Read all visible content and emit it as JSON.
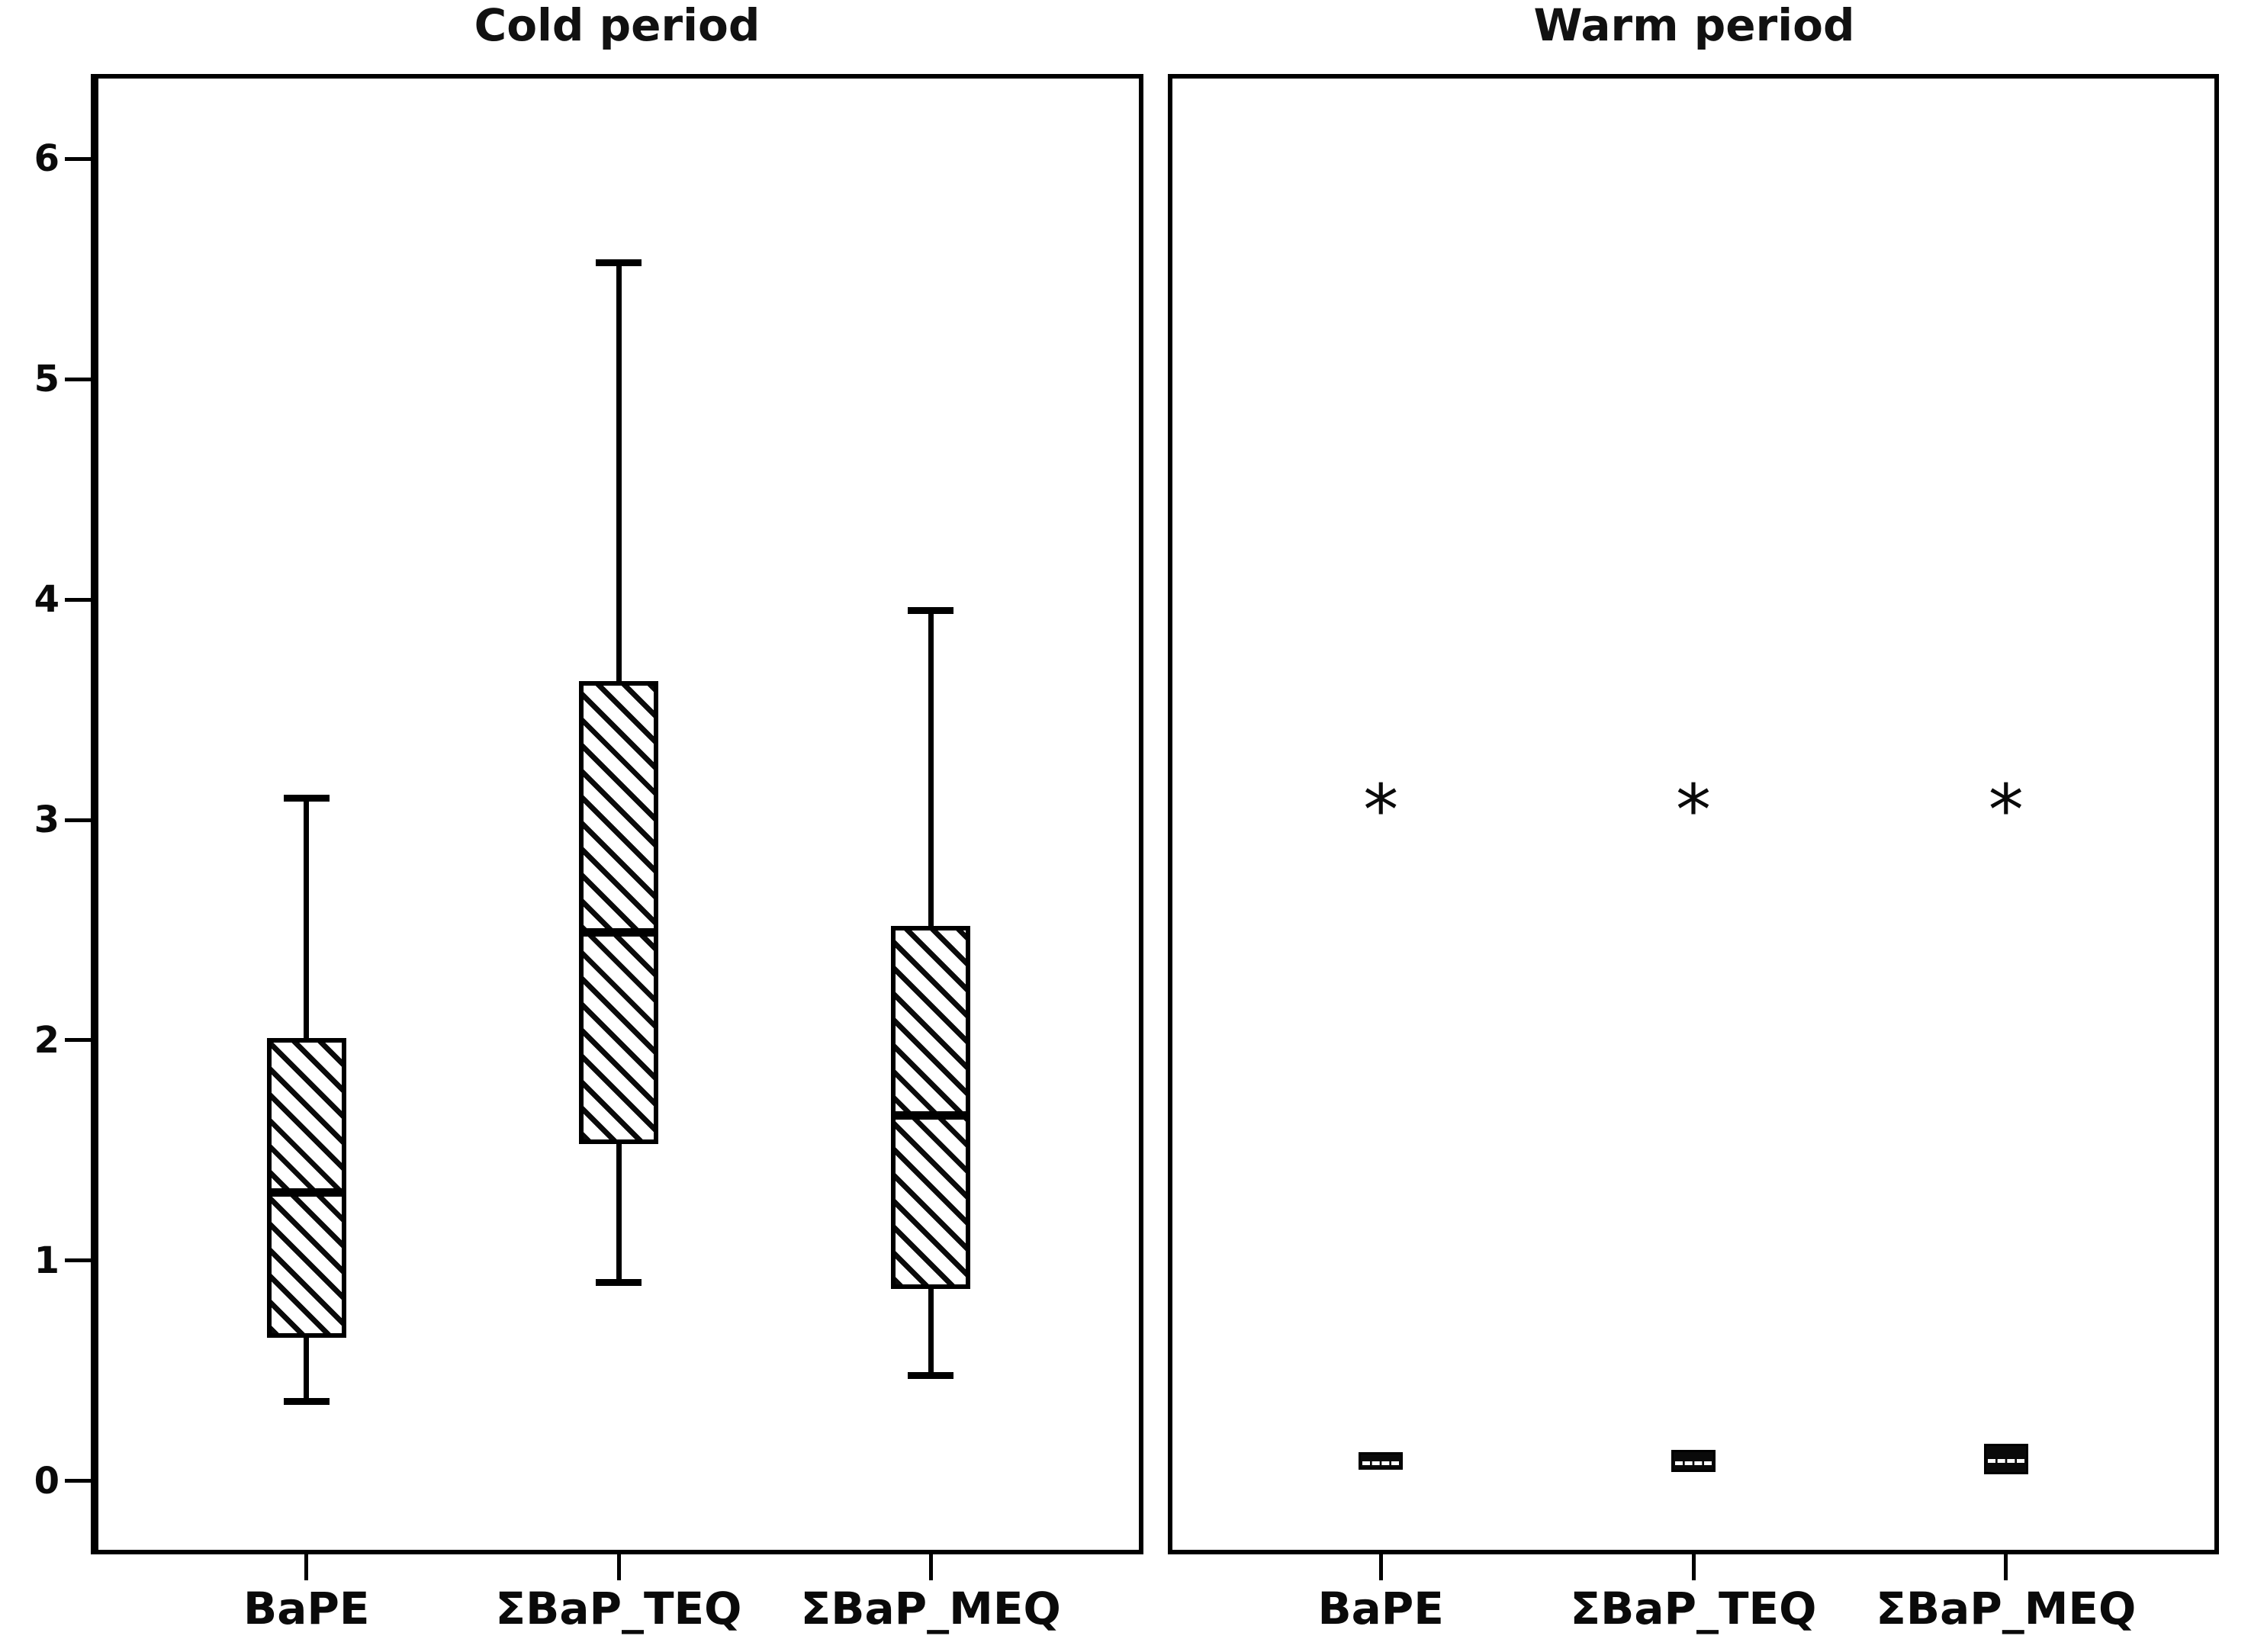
{
  "figure": {
    "titles": {
      "left": "Cold period",
      "right": "Warm period"
    },
    "background_color": "#ffffff",
    "ink_color": "#000000"
  },
  "y_axis": {
    "tick_labels": [
      "0",
      "1",
      "2",
      "3",
      "4",
      "5",
      "6"
    ],
    "range_min": 0,
    "range_max": 6
  },
  "x_axis": {
    "categories": [
      "BaPE",
      "ΣBaP_TEQ",
      "ΣBaP_MEQ"
    ]
  },
  "chart_data": [
    {
      "type": "box",
      "panel_title": "Cold period",
      "categories": [
        "BaPE",
        "ΣBaP_TEQ",
        "ΣBaP_MEQ"
      ],
      "ylim": [
        0,
        6
      ],
      "y_ticks": [
        0,
        1,
        2,
        3,
        4,
        5,
        6
      ],
      "grid": false,
      "legend": "none",
      "box_style": "diagonal-hatch",
      "outlier_marker": "asterisk",
      "series": [
        {
          "name": "BaPE",
          "whisker_low": 0.36,
          "q1": 0.65,
          "median": 1.31,
          "q3": 2.01,
          "whisker_high": 3.1,
          "outliers": []
        },
        {
          "name": "ΣBaP_TEQ",
          "whisker_low": 0.9,
          "q1": 1.53,
          "median": 2.49,
          "q3": 3.63,
          "whisker_high": 5.53,
          "outliers": []
        },
        {
          "name": "ΣBaP_MEQ",
          "whisker_low": 0.48,
          "q1": 0.87,
          "median": 1.66,
          "q3": 2.52,
          "whisker_high": 3.95,
          "outliers": []
        }
      ]
    },
    {
      "type": "box",
      "panel_title": "Warm period",
      "categories": [
        "BaPE",
        "ΣBaP_TEQ",
        "ΣBaP_MEQ"
      ],
      "ylim": [
        0,
        6
      ],
      "y_ticks": [
        0,
        1,
        2,
        3,
        4,
        5,
        6
      ],
      "grid": false,
      "legend": "none",
      "box_style": "solid-dark",
      "outlier_marker": "asterisk",
      "series": [
        {
          "name": "BaPE",
          "q1": 0.05,
          "median": 0.09,
          "q3": 0.13,
          "outliers": [
            3.07
          ]
        },
        {
          "name": "ΣBaP_TEQ",
          "q1": 0.04,
          "median": 0.09,
          "q3": 0.14,
          "outliers": [
            3.07
          ]
        },
        {
          "name": "ΣBaP_MEQ",
          "q1": 0.03,
          "median": 0.1,
          "q3": 0.17,
          "outliers": [
            3.07
          ]
        }
      ]
    }
  ]
}
